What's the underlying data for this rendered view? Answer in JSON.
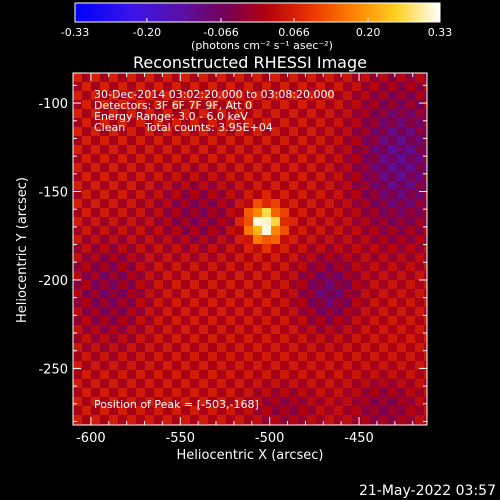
{
  "colorbar": {
    "tick_labels": [
      "-0.33",
      "-0.20",
      "-0.066",
      "0.066",
      "0.20",
      "0.33"
    ],
    "tick_values": [
      -0.33,
      -0.2,
      -0.066,
      0.066,
      0.2,
      0.33
    ],
    "range": [
      -0.33,
      0.33
    ],
    "units": "(photons cm⁻² s⁻¹ asec⁻²)",
    "colormap": "blue-purple-red-yellow-white"
  },
  "header": {
    "title": "Reconstructed RHESSI Image"
  },
  "info": {
    "time_range": "30-Dec-2014 03:02:20.000 to 03:08:20.000",
    "detectors": "Detectors: 3F 6F 7F 9F, Att 0",
    "energy_range": "Energy Range: 3.0 - 6.0 keV",
    "method": "Clean",
    "total_counts": "Total counts: 3.95E+04",
    "peak_position": "Position of Peak = [-503,-168]"
  },
  "axes": {
    "xlabel": "Heliocentric X (arcsec)",
    "ylabel": "Heliocentric Y (arcsec)",
    "x_ticks": [
      "-600",
      "-550",
      "-500",
      "-450"
    ],
    "y_ticks": [
      "-100",
      "-150",
      "-200",
      "-250"
    ]
  },
  "footer": {
    "timestamp": "21-May-2022 03:57"
  },
  "chart_data": {
    "type": "heatmap",
    "title": "Reconstructed RHESSI Image",
    "xlabel": "Heliocentric X (arcsec)",
    "ylabel": "Heliocentric Y (arcsec)",
    "xlim": [
      -610,
      -412
    ],
    "ylim": [
      -282,
      -83
    ],
    "x_ticks": [
      -600,
      -550,
      -500,
      -450
    ],
    "y_ticks": [
      -100,
      -150,
      -200,
      -250
    ],
    "color_range": [
      -0.33,
      0.33
    ],
    "peak": {
      "x": -503,
      "y": -168,
      "value": 0.33
    }
  }
}
